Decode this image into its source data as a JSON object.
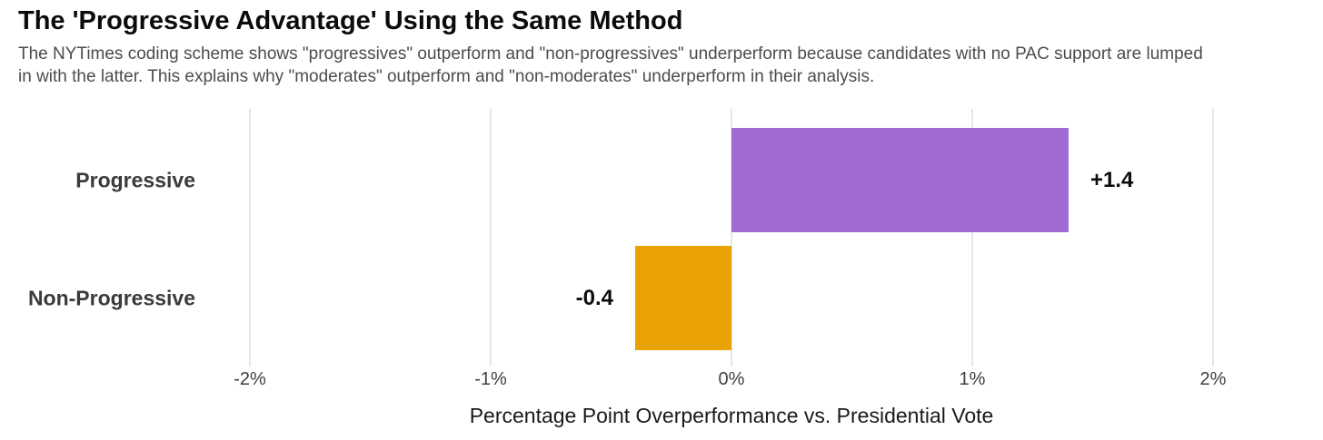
{
  "chart_data": {
    "type": "bar",
    "orientation": "horizontal",
    "title": "The 'Progressive Advantage' Using the Same Method",
    "subtitle": "The NYTimes coding scheme shows \"progressives\" outperform and \"non-progressives\" underperform because candidates with no PAC support are lumped\nin with the latter. This explains why \"moderates\" outperform and \"non-moderates\" underperform in their analysis.",
    "categories": [
      "Progressive",
      "Non-Progressive"
    ],
    "values": [
      1.4,
      -0.4
    ],
    "value_labels": [
      "+1.4",
      "-0.4"
    ],
    "bar_colors": [
      "#a06ad2",
      "#e8a202"
    ],
    "xlabel": "Percentage Point Overperformance vs. Presidential Vote",
    "ylabel": "",
    "x_ticks": [
      -2,
      -1,
      0,
      1,
      2
    ],
    "x_tick_labels": [
      "-2%",
      "-1%",
      "0%",
      "1%",
      "2%"
    ],
    "xlim": [
      -2,
      2
    ],
    "grid": "vertical-only",
    "legend": "none",
    "colors": {
      "background": "#ffffff",
      "title_text": "#0b0b0b",
      "subtitle_text": "#4c4c4c",
      "category_text": "#3b3b3b",
      "value_text": "#0d0d0d",
      "tick_text": "#3f3f3f",
      "gridline": "#e7e7e7",
      "bar_progressive": "#a06ad2",
      "bar_non_progressive": "#e8a202"
    }
  }
}
